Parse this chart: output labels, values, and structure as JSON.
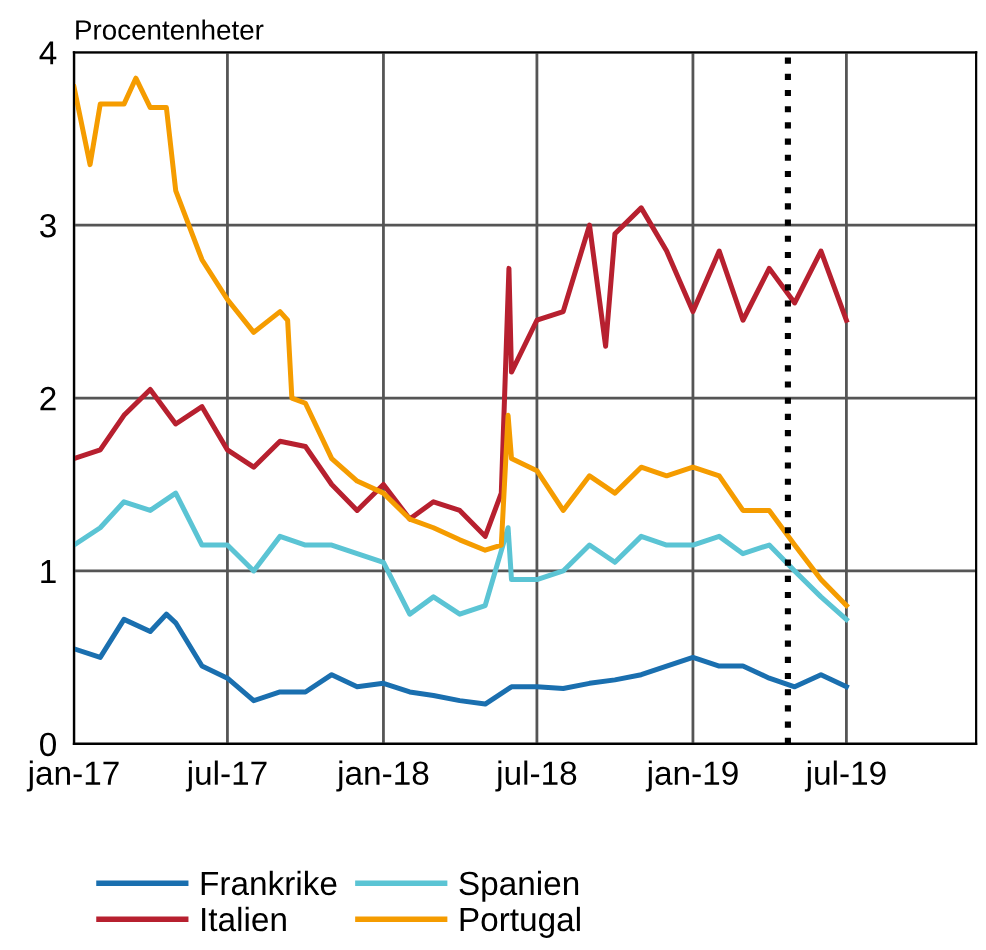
{
  "chart_data": {
    "type": "line",
    "ylabel": "Procentenheter",
    "xlim": [
      "2017-01-01",
      "2019-12-01"
    ],
    "ylim": [
      0,
      4
    ],
    "yticks": [
      0,
      1,
      2,
      3,
      4
    ],
    "xticks": [
      {
        "value": "2017-01-01",
        "label": "jan-17"
      },
      {
        "value": "2017-07-01",
        "label": "jul-17"
      },
      {
        "value": "2018-01-01",
        "label": "jan-18"
      },
      {
        "value": "2018-07-01",
        "label": "jul-18"
      },
      {
        "value": "2019-01-01",
        "label": "jan-19"
      },
      {
        "value": "2019-07-01",
        "label": "jul-19"
      }
    ],
    "grid": true,
    "legend": "bottom",
    "marker": "none",
    "line_style": "solid",
    "ref_lines": [
      {
        "axis": "x",
        "value": "2019-04-23",
        "label": null,
        "color": "#000000",
        "line_style": "dotted"
      }
    ],
    "series": [
      {
        "name": "Frankrike",
        "color": "#1a6faf",
        "x": [
          "2017-01-01",
          "2017-02-01",
          "2017-03-01",
          "2017-04-01",
          "2017-04-20",
          "2017-05-01",
          "2017-06-01",
          "2017-07-01",
          "2017-08-01",
          "2017-09-01",
          "2017-10-01",
          "2017-11-01",
          "2017-12-01",
          "2018-01-01",
          "2018-02-01",
          "2018-03-01",
          "2018-04-01",
          "2018-05-01",
          "2018-06-01",
          "2018-07-01",
          "2018-08-01",
          "2018-09-01",
          "2018-10-01",
          "2018-11-01",
          "2018-12-01",
          "2019-01-01",
          "2019-02-01",
          "2019-03-01",
          "2019-04-01",
          "2019-05-01",
          "2019-06-01",
          "2019-07-01"
        ],
        "values": [
          0.55,
          0.5,
          0.72,
          0.65,
          0.75,
          0.7,
          0.45,
          0.38,
          0.25,
          0.3,
          0.3,
          0.4,
          0.33,
          0.35,
          0.3,
          0.28,
          0.25,
          0.23,
          0.33,
          0.33,
          0.32,
          0.35,
          0.37,
          0.4,
          0.45,
          0.5,
          0.45,
          0.45,
          0.38,
          0.33,
          0.4,
          0.33
        ]
      },
      {
        "name": "Italien",
        "color": "#b7202f",
        "x": [
          "2017-01-01",
          "2017-02-01",
          "2017-03-01",
          "2017-04-01",
          "2017-05-01",
          "2017-06-01",
          "2017-07-01",
          "2017-08-01",
          "2017-09-01",
          "2017-10-01",
          "2017-11-01",
          "2017-12-01",
          "2018-01-01",
          "2018-02-01",
          "2018-03-01",
          "2018-04-01",
          "2018-05-01",
          "2018-05-20",
          "2018-05-29",
          "2018-06-01",
          "2018-07-01",
          "2018-08-01",
          "2018-09-01",
          "2018-09-20",
          "2018-10-01",
          "2018-11-01",
          "2018-12-01",
          "2019-01-01",
          "2019-02-01",
          "2019-03-01",
          "2019-04-01",
          "2019-05-01",
          "2019-06-01",
          "2019-07-01"
        ],
        "values": [
          1.65,
          1.7,
          1.9,
          2.05,
          1.85,
          1.95,
          1.7,
          1.6,
          1.75,
          1.72,
          1.5,
          1.35,
          1.5,
          1.3,
          1.4,
          1.35,
          1.2,
          1.45,
          2.75,
          2.15,
          2.45,
          2.5,
          3.0,
          2.3,
          2.95,
          3.1,
          2.85,
          2.5,
          2.85,
          2.45,
          2.75,
          2.55,
          2.85,
          2.45
        ]
      },
      {
        "name": "Spanien",
        "color": "#5bc4d4",
        "x": [
          "2017-01-01",
          "2017-02-01",
          "2017-03-01",
          "2017-04-01",
          "2017-05-01",
          "2017-06-01",
          "2017-07-01",
          "2017-08-01",
          "2017-09-01",
          "2017-10-01",
          "2017-11-01",
          "2017-12-01",
          "2018-01-01",
          "2018-02-01",
          "2018-03-01",
          "2018-04-01",
          "2018-05-01",
          "2018-05-28",
          "2018-06-01",
          "2018-07-01",
          "2018-08-01",
          "2018-09-01",
          "2018-10-01",
          "2018-11-01",
          "2018-12-01",
          "2019-01-01",
          "2019-02-01",
          "2019-03-01",
          "2019-04-01",
          "2019-05-01",
          "2019-06-01",
          "2019-07-01"
        ],
        "values": [
          1.15,
          1.25,
          1.4,
          1.35,
          1.45,
          1.15,
          1.15,
          1.0,
          1.2,
          1.15,
          1.15,
          1.1,
          1.05,
          0.75,
          0.85,
          0.75,
          0.8,
          1.25,
          0.95,
          0.95,
          1.0,
          1.15,
          1.05,
          1.2,
          1.15,
          1.15,
          1.2,
          1.1,
          1.15,
          1.0,
          0.85,
          0.72
        ]
      },
      {
        "name": "Portugal",
        "color": "#f59c00",
        "x": [
          "2017-01-01",
          "2017-01-20",
          "2017-02-01",
          "2017-03-01",
          "2017-03-15",
          "2017-04-01",
          "2017-04-20",
          "2017-05-01",
          "2017-06-01",
          "2017-07-01",
          "2017-08-01",
          "2017-09-01",
          "2017-09-10",
          "2017-09-15",
          "2017-10-01",
          "2017-11-01",
          "2017-12-01",
          "2018-01-01",
          "2018-02-01",
          "2018-03-01",
          "2018-04-01",
          "2018-05-01",
          "2018-05-20",
          "2018-05-28",
          "2018-06-01",
          "2018-07-01",
          "2018-08-01",
          "2018-09-01",
          "2018-10-01",
          "2018-11-01",
          "2018-12-01",
          "2019-01-01",
          "2019-02-01",
          "2019-03-01",
          "2019-04-01",
          "2019-05-01",
          "2019-06-01",
          "2019-07-01"
        ],
        "values": [
          3.8,
          3.35,
          3.7,
          3.7,
          3.85,
          3.68,
          3.68,
          3.2,
          2.8,
          2.57,
          2.38,
          2.5,
          2.45,
          2.0,
          1.97,
          1.65,
          1.52,
          1.45,
          1.3,
          1.25,
          1.18,
          1.12,
          1.15,
          1.9,
          1.65,
          1.58,
          1.35,
          1.55,
          1.45,
          1.6,
          1.55,
          1.6,
          1.55,
          1.35,
          1.35,
          1.15,
          0.95,
          0.8
        ]
      }
    ]
  }
}
